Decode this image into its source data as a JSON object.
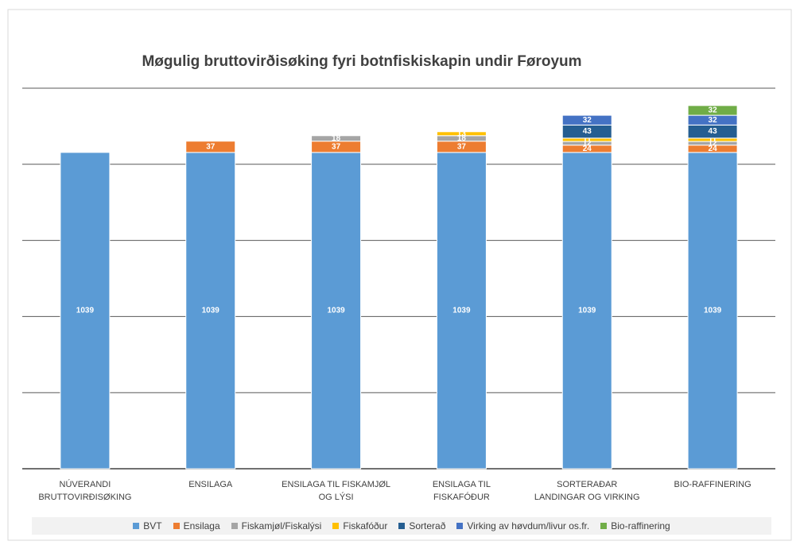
{
  "chart_data": {
    "type": "stacked_bar",
    "title": "Møgulig bruttovirðisøking fyri botnfiskiskapin undir Føroyum",
    "categories": [
      "NÚVERANDI BRUTTOVIRÐISØKING",
      "ENSILAGA",
      "ENSILAGA TIL FISKAMJØL OG LÝSI",
      "ENSILAGA TIL FISKAFÓÐUR",
      "SORTERAÐAR LANDINGAR OG VIRKING",
      "BIO-RAFFINERING"
    ],
    "series": [
      {
        "name": "BVT",
        "color": "#5b9bd5",
        "values": [
          1039,
          1039,
          1039,
          1039,
          1039,
          1039
        ]
      },
      {
        "name": "Ensilaga",
        "color": "#ed7d31",
        "values": [
          null,
          37,
          37,
          37,
          24,
          24
        ]
      },
      {
        "name": "Fiskamjøl/Fiskalýsi",
        "color": "#a5a5a5",
        "values": [
          null,
          null,
          18,
          18,
          12,
          12
        ]
      },
      {
        "name": "Fiskafóður",
        "color": "#ffc000",
        "values": [
          null,
          null,
          null,
          13,
          11,
          11
        ]
      },
      {
        "name": "Sorterað",
        "color": "#255e91",
        "values": [
          null,
          null,
          null,
          null,
          43,
          43
        ]
      },
      {
        "name": "Virking av høvdum/livur os.fr.",
        "color": "#4472c4",
        "values": [
          null,
          null,
          null,
          null,
          32,
          32
        ]
      },
      {
        "name": "Bio-raffinering",
        "color": "#70ad47",
        "values": [
          null,
          null,
          null,
          null,
          null,
          32
        ]
      }
    ],
    "ylim": [
      0,
      1250
    ],
    "yticks": [
      0,
      250,
      500,
      750,
      1000,
      1250
    ],
    "grid": true
  }
}
